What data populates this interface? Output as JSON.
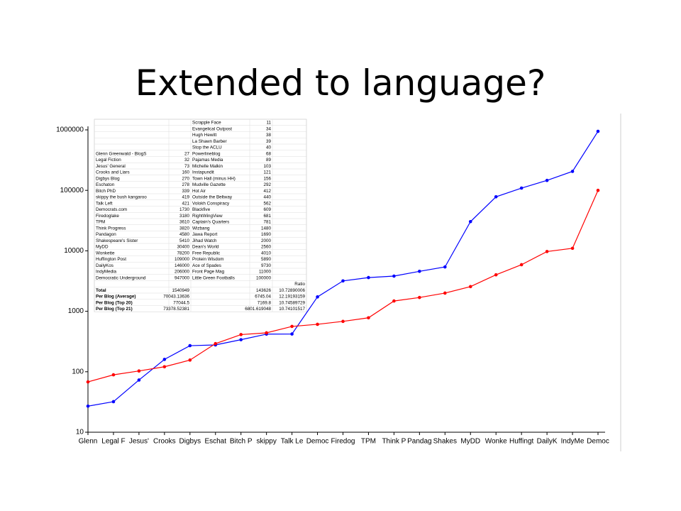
{
  "title": "Extended to language?",
  "chart_data": {
    "type": "line",
    "log": true,
    "grid": false,
    "categories": [
      "Glenn",
      "Legal F",
      "Jesus'",
      "Crooks",
      "Digbys",
      "Eschat",
      "Bitch P",
      "skippy",
      "Talk Le",
      "Democ",
      "Firedog",
      "TPM",
      "Think P",
      "Pandag",
      "Shakes",
      "MyDD",
      "Wonke",
      "Huffingt",
      "DailyK",
      "IndyMe",
      "Democ"
    ],
    "series": [
      {
        "color": "#0000ff",
        "values": [
          27,
          32,
          73,
          160,
          270,
          278,
          339,
          419,
          421,
          1730,
          3180,
          3610,
          3820,
          4580,
          5410,
          30400,
          78200,
          109000,
          146000,
          206000,
          947000
        ]
      },
      {
        "color": "#ff0000",
        "values": [
          68,
          89,
          103,
          121,
          156,
          292,
          412,
          440,
          562,
          609,
          681,
          781,
          1480,
          1690,
          2000,
          2560,
          4010,
          5890,
          9730,
          11000,
          100000
        ]
      }
    ],
    "ylim": [
      10,
      1000000
    ],
    "yticks": [
      10,
      100,
      1000,
      10000,
      100000,
      1000000
    ]
  },
  "table": {
    "rows": [
      [
        null,
        null,
        "Scrapple Face",
        11,
        null
      ],
      [
        null,
        null,
        "Evangelical Outpost",
        34,
        null
      ],
      [
        null,
        null,
        "Hugh Hewitt",
        38,
        null
      ],
      [
        null,
        null,
        "La Shawn Barber",
        39,
        null
      ],
      [
        null,
        null,
        "Stop the ACLU",
        40,
        null
      ],
      [
        "Glenn Greenwald - BlogS",
        27,
        "Powerlineblog",
        68,
        null
      ],
      [
        "Legal Fiction",
        32,
        "Pajamas Media",
        89,
        null
      ],
      [
        "Jesus' General",
        73,
        "Michelle Malkin",
        103,
        null
      ],
      [
        "Crooks and Liars",
        160,
        "Instapundit",
        121,
        null
      ],
      [
        "Digbys Blog",
        270,
        "Town Hall (minus HH)",
        156,
        null
      ],
      [
        "Eschaton",
        278,
        "Mudville Gazette",
        292,
        null
      ],
      [
        "Bitch PhD",
        339,
        "Hot Air",
        412,
        null
      ],
      [
        "skippy the bush kangaroo",
        419,
        "Outside the Beltway",
        440,
        null
      ],
      [
        "Talk Left",
        421,
        "Volokh Conspiracy",
        562,
        null
      ],
      [
        "Democrats.com",
        1730,
        "Blackfive",
        609,
        null
      ],
      [
        "Firedoglake",
        3180,
        "RightWingView",
        681,
        null
      ],
      [
        "TPM",
        3610,
        "Captain's Quarters",
        781,
        null
      ],
      [
        "Think Progress",
        3820,
        "Wizbang",
        1480,
        null
      ],
      [
        "Pandagon",
        4580,
        "Jawa Report",
        1690,
        null
      ],
      [
        "Shakespeare's Sister",
        5410,
        "Jihad Watch",
        2000,
        null
      ],
      [
        "MyDD",
        30400,
        "Dean's World",
        2560,
        null
      ],
      [
        "Wonkette",
        78200,
        "Free Republic",
        4010,
        null
      ],
      [
        "Huffington Post",
        109000,
        "Protein Wisdom",
        5890,
        null
      ],
      [
        "DailyKos",
        146000,
        "Ace of Spades",
        9730,
        null
      ],
      [
        "IndyMedia",
        206000,
        "Front Page Mag",
        11000,
        null
      ],
      [
        "Democratic Underground",
        947000,
        "Little Green Footballs",
        100000,
        null
      ],
      [
        null,
        null,
        null,
        null,
        "Ratio"
      ],
      [
        "Total",
        1540949,
        null,
        143626,
        10.72890006
      ],
      [
        "Per Blog (Average)",
        70043.13636,
        null,
        6745.04,
        12.19193159
      ],
      [
        "Per Blog (Top 20)",
        77044.5,
        null,
        7169.8,
        10.74589729
      ],
      [
        "Per Blog (Top 21)",
        73378.52381,
        null,
        6801.619048,
        10.74101517
      ]
    ]
  }
}
